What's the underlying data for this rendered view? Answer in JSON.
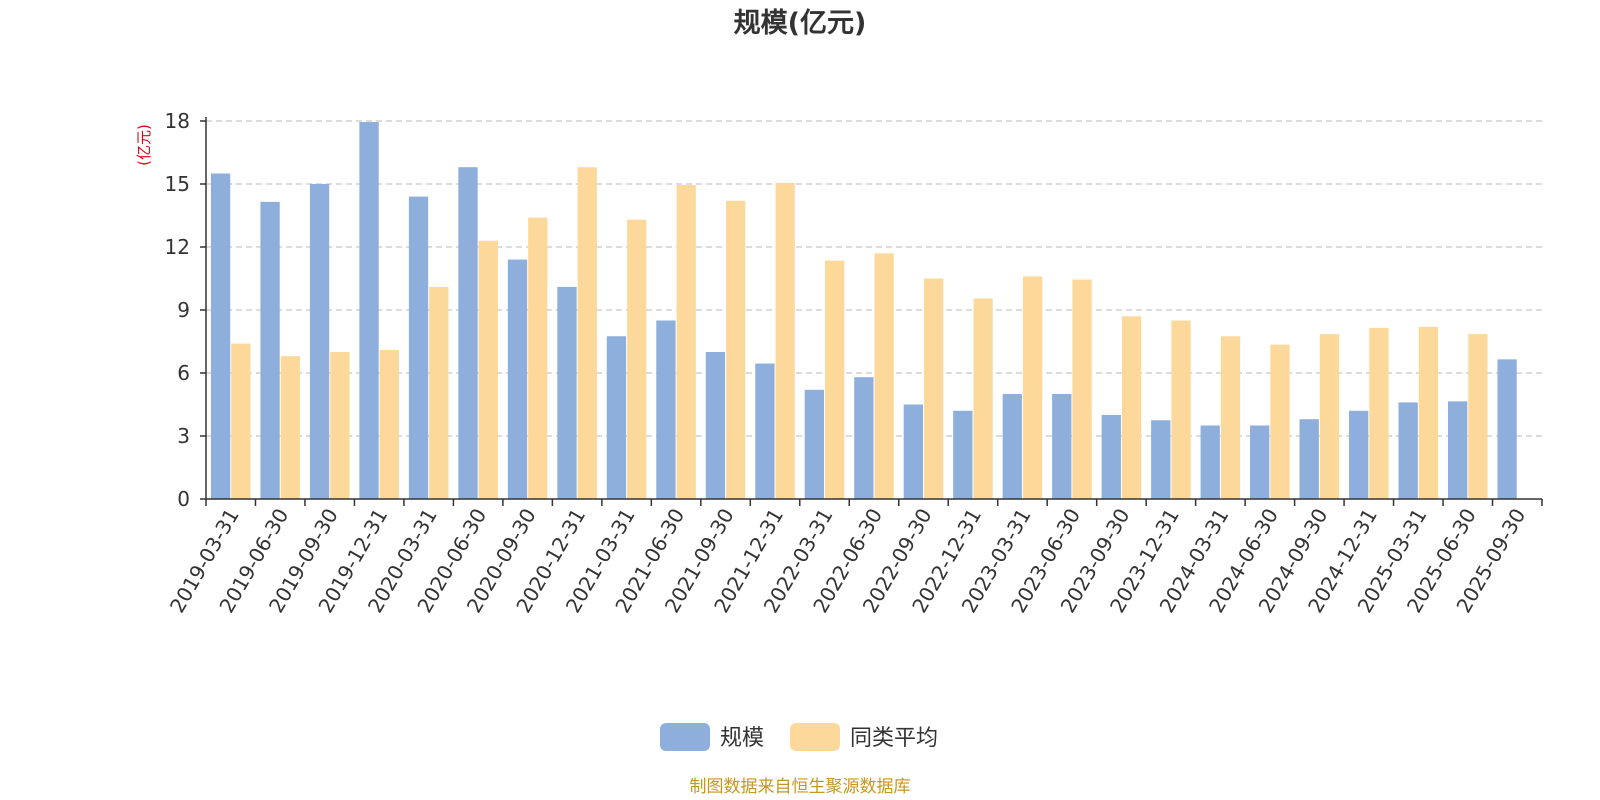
{
  "chart_data": {
    "type": "bar",
    "title": "规模(亿元)",
    "ylabel": "(亿元)",
    "xlabel": "",
    "ylim": [
      0,
      18
    ],
    "yticks": [
      0,
      3,
      6,
      9,
      12,
      15,
      18
    ],
    "grid": true,
    "legend_position": "bottom",
    "categories": [
      "2019-03-31",
      "2019-06-30",
      "2019-09-30",
      "2019-12-31",
      "2020-03-31",
      "2020-06-30",
      "2020-09-30",
      "2020-12-31",
      "2021-03-31",
      "2021-06-30",
      "2021-09-30",
      "2021-12-31",
      "2022-03-31",
      "2022-06-30",
      "2022-09-30",
      "2022-12-31",
      "2023-03-31",
      "2023-06-30",
      "2023-09-30",
      "2023-12-31",
      "2024-03-31",
      "2024-06-30",
      "2024-09-30",
      "2024-12-31",
      "2025-03-31",
      "2025-06-30",
      "2025-09-30"
    ],
    "series": [
      {
        "name": "规模",
        "color": "#8eaedb",
        "values": [
          15.5,
          14.15,
          15.0,
          17.95,
          14.4,
          15.8,
          11.4,
          10.1,
          7.75,
          8.5,
          7.0,
          6.45,
          5.2,
          5.8,
          4.5,
          4.2,
          5.0,
          5.0,
          4.0,
          3.75,
          3.5,
          3.5,
          3.8,
          4.2,
          4.6,
          4.65,
          6.65
        ]
      },
      {
        "name": "同类平均",
        "color": "#fcd99a",
        "values": [
          7.4,
          6.8,
          7.0,
          7.1,
          10.1,
          12.3,
          13.4,
          15.8,
          13.3,
          14.95,
          14.2,
          15.05,
          11.35,
          11.7,
          10.5,
          9.55,
          10.6,
          10.45,
          8.7,
          8.5,
          7.75,
          7.35,
          7.85,
          8.15,
          8.2,
          7.85,
          null
        ]
      }
    ],
    "source": "制图数据来自恒生聚源数据库",
    "unit_color": "#e60012",
    "source_color": "#c8961e"
  }
}
